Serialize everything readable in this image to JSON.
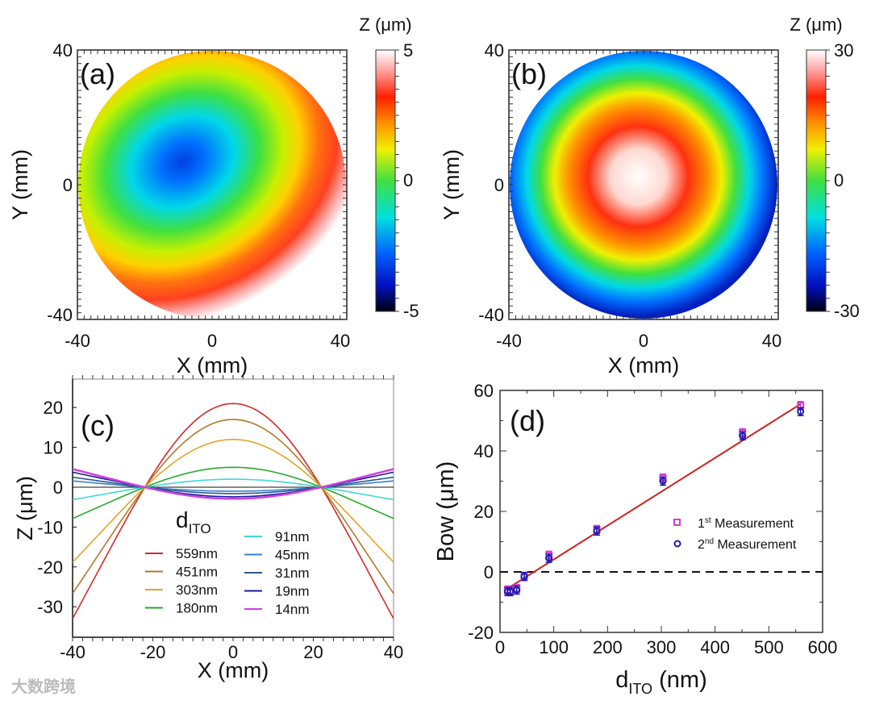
{
  "watermark": "大数跨境",
  "chart_data": [
    {
      "panel": "(a)",
      "type": "heatmap",
      "xlabel": "X (mm)",
      "ylabel": "Y (mm)",
      "xlim": [
        -40,
        40
      ],
      "ylim": [
        -40,
        40
      ],
      "xticks": [
        "-40",
        "0",
        "40"
      ],
      "yticks": [
        "-40",
        "0",
        "40"
      ],
      "colorbar": {
        "label": "Z (μm)",
        "range": [
          -5,
          5
        ],
        "ticks": [
          "-5",
          "0",
          "5"
        ]
      }
    },
    {
      "panel": "(b)",
      "type": "heatmap",
      "xlabel": "X (mm)",
      "ylabel": "Y (mm)",
      "xlim": [
        -40,
        40
      ],
      "ylim": [
        -40,
        40
      ],
      "xticks": [
        "-40",
        "0",
        "40"
      ],
      "yticks": [
        "-40",
        "0",
        "40"
      ],
      "colorbar": {
        "label": "Z (μm)",
        "range": [
          -30,
          30
        ],
        "ticks": [
          "-30",
          "0",
          "30"
        ]
      }
    },
    {
      "panel": "(c)",
      "type": "line",
      "xlabel": "X (mm)",
      "ylabel": "Z (μm)",
      "xlim": [
        -40,
        40
      ],
      "ylim": [
        -36,
        25
      ],
      "xticks": [
        "-40",
        "-20",
        "0",
        "20",
        "40"
      ],
      "yticks": [
        "20",
        "10",
        "0",
        "-10",
        "-20",
        "-30"
      ],
      "legend_title": "d",
      "legend_title_sub": "ITO",
      "zero_crossing_mm": 22,
      "series": [
        {
          "name": "559nm",
          "peak": 21,
          "color": "#d42a2a"
        },
        {
          "name": "451nm",
          "peak": 17,
          "color": "#b07a2a"
        },
        {
          "name": "303nm",
          "peak": 12,
          "color": "#e0a52a"
        },
        {
          "name": "180nm",
          "peak": 5,
          "color": "#2aa82a"
        },
        {
          "name": "91nm",
          "peak": 2,
          "color": "#3dd8d8"
        },
        {
          "name": "45nm",
          "peak": -1,
          "color": "#3a80d0"
        },
        {
          "name": "31nm",
          "peak": -1.6,
          "color": "#2a5a8a"
        },
        {
          "name": "19nm",
          "peak": -2.4,
          "color": "#1a1aa0"
        },
        {
          "name": "14nm",
          "peak": -2.9,
          "color": "#d040e0"
        }
      ]
    },
    {
      "panel": "(d)",
      "type": "scatter",
      "xlabel": "d",
      "xlabel_sub": "ITO",
      "xlabel_unit": " (nm)",
      "ylabel": "Bow (μm)",
      "xlim": [
        0,
        600
      ],
      "ylim": [
        -20,
        60
      ],
      "xticks": [
        "0",
        "100",
        "200",
        "300",
        "400",
        "500",
        "600"
      ],
      "yticks": [
        "60",
        "40",
        "20",
        "0",
        "-20"
      ],
      "x": [
        14,
        19,
        31,
        45,
        91,
        180,
        303,
        451,
        559
      ],
      "series": [
        {
          "name": "1st Measurement",
          "base": "1",
          "sup": "st",
          "rest": " Measurement",
          "marker": "square",
          "color": "#d040d0",
          "values": [
            -6,
            -6.5,
            -5.5,
            -1.5,
            5.5,
            14,
            31,
            46,
            55
          ]
        },
        {
          "name": "2nd Measurement",
          "base": "2",
          "sup": "nd",
          "rest": " Measurement",
          "marker": "circle",
          "color": "#1a1ab0",
          "values": [
            -6.5,
            -6.5,
            -6,
            -1.5,
            4.5,
            13.5,
            30,
            45,
            53
          ]
        }
      ],
      "fit": {
        "x": [
          14,
          559
        ],
        "y": [
          -5.5,
          55.5
        ],
        "color": "#cc2222"
      },
      "reference_line_y": 0
    }
  ]
}
